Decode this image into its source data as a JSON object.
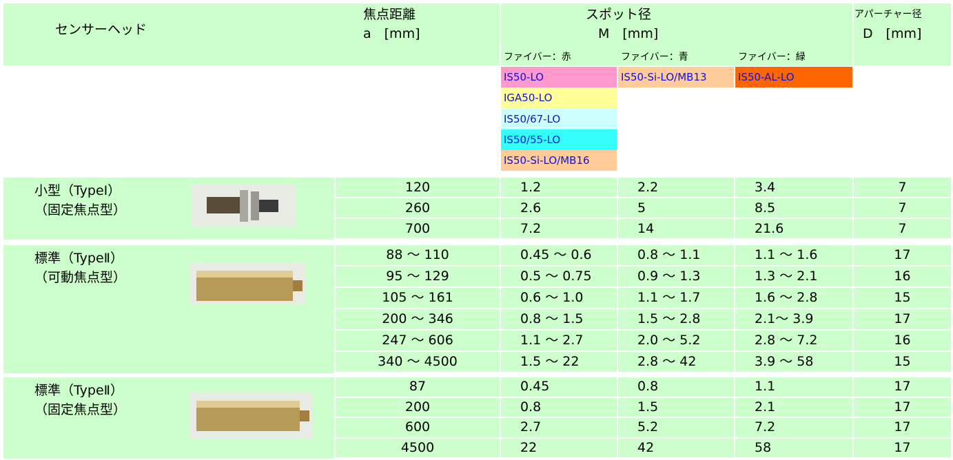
{
  "header": {
    "sensor_head": "センサーヘッド",
    "focal": "焦点距離",
    "focal_unit": "a　[mm]",
    "spot": "スポット径",
    "spot_unit": "M　[mm]",
    "aperture": "アパーチャー径",
    "aperture_unit": "D　[mm]",
    "fibers": [
      "ファイバー：赤",
      "ファイバー：青",
      "ファイバー：緑"
    ]
  },
  "models": [
    [
      "IS50-LO",
      "IGA50-LO",
      "IS50/67-LO",
      "IS50/55-LO",
      "IS50-Si-LO/MB16"
    ],
    [
      "IS50-Si-LO/MB13"
    ],
    [
      "IS50-AL-LO"
    ]
  ],
  "groups": [
    {
      "name": "小型（TypeⅠ）",
      "sub": "（固定焦点型）",
      "rows": [
        [
          "120",
          "1.2",
          "2.2",
          "3.4",
          "7"
        ],
        [
          "260",
          "2.6",
          "5",
          "8.5",
          "7"
        ],
        [
          "700",
          "7.2",
          "14",
          "21.6",
          "7"
        ]
      ]
    },
    {
      "name": "標準（TypeⅡ）",
      "sub": "（可動焦点型）",
      "rows": [
        [
          "88 ～ 110",
          "0.45 ～ 0.6",
          "0.8 ～ 1.1",
          "1.1 ～ 1.6",
          "17"
        ],
        [
          "95 ～ 129",
          "0.5 ～ 0.75",
          "0.9 ～ 1.3",
          "1.3 ～ 2.1",
          "16"
        ],
        [
          "105 ～ 161",
          "0.6 ～ 1.0",
          "1.1 ～ 1.7",
          "1.6 ～ 2.8",
          "15"
        ],
        [
          "200 ～ 346",
          "0.8 ～ 1.5",
          "1.5 ～ 2.8",
          "2.1～ 3.9",
          "17"
        ],
        [
          "247 ～ 606",
          "1.1 ～ 2.7",
          "2.0 ～ 5.2",
          "2.8 ～ 7.2",
          "16"
        ],
        [
          "340 ～ 4500",
          "1.5 ～ 22",
          "2.8 ～ 42",
          "3.9 ～ 58",
          "15"
        ]
      ]
    },
    {
      "name": "標準（TypeⅡ）",
      "sub": "（固定焦点型）",
      "rows": [
        [
          "87",
          "0.45",
          "0.8",
          "1.1",
          "17"
        ],
        [
          "200",
          "0.8",
          "1.5",
          "2.1",
          "17"
        ],
        [
          "600",
          "2.7",
          "5.2",
          "7.2",
          "17"
        ],
        [
          "4500",
          "22",
          "42",
          "58",
          "17"
        ]
      ]
    }
  ]
}
